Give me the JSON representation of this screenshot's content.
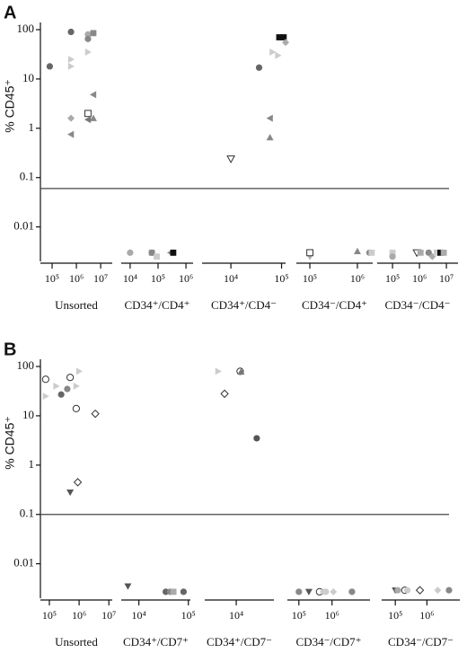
{
  "chart_data": [
    {
      "type": "scatter",
      "panel": "A",
      "y_label": "% CD45⁺",
      "yscale": "log",
      "ylim": [
        0.002,
        140
      ],
      "yticks": [
        100,
        10,
        1,
        0.1,
        0.01
      ],
      "threshold": 0.06,
      "groups": [
        {
          "name": "Unsorted",
          "xlim": [
            33000,
            30000000
          ],
          "xticks": [
            {
              "value": 100000,
              "label": "10⁵"
            },
            {
              "value": 1000000,
              "label": "10⁶"
            },
            {
              "value": 10000000,
              "label": "10⁷"
            }
          ],
          "x": [
            80000,
            600000,
            600000,
            600000,
            600000,
            600000,
            3000000,
            3000000,
            3000000,
            3000000,
            3000000,
            5000000,
            5000000,
            5000000
          ],
          "y": [
            18,
            90,
            25,
            18,
            1.6,
            0.75,
            80,
            65,
            35,
            2.0,
            1.5,
            85,
            4.8,
            1.6
          ],
          "marker": [
            "circle",
            "circle",
            "triangle-right",
            "triangle-right",
            "diamond",
            "triangle-left",
            "circle",
            "circle",
            "triangle-right",
            "square",
            "triangle-left",
            "square",
            "triangle-left",
            "triangle-up"
          ],
          "color": [
            "#666666",
            "#666666",
            "#cccccc",
            "#cccccc",
            "#aaaaaa",
            "#888888",
            "#aaaaaa",
            "#888888",
            "#cccccc",
            "#ffffff",
            "#777777",
            "#888888",
            "#888888",
            "#888888"
          ]
        },
        {
          "name": "CD34⁺/CD4⁺",
          "xlim": [
            4800,
            1800000
          ],
          "xticks": [
            {
              "value": 10000,
              "label": "10⁴"
            },
            {
              "value": 100000,
              "label": "10⁵"
            },
            {
              "value": 1000000,
              "label": "10⁶"
            }
          ],
          "x": [
            10000,
            60000,
            60000,
            90000,
            280000,
            350000
          ],
          "y": [
            0.003,
            0.003,
            0.003,
            0.0025,
            0.003,
            0.003
          ],
          "marker": [
            "circle",
            "square",
            "circle",
            "square",
            "triangle-left",
            "square"
          ],
          "color": [
            "#aaaaaa",
            "#aaaaaa",
            "#888888",
            "#cccccc",
            "#888888",
            "#111111"
          ]
        },
        {
          "name": "CD34⁺/CD4⁻",
          "xlim": [
            2700,
            120000
          ],
          "xticks": [
            {
              "value": 10000,
              "label": "10⁴"
            },
            {
              "value": 100000,
              "label": "10⁵"
            }
          ],
          "x": [
            10000,
            36000,
            59000,
            59000,
            66000,
            85000,
            90000,
            110000,
            120000
          ],
          "y": [
            0.24,
            17,
            1.6,
            0.65,
            35,
            30,
            70,
            70,
            55
          ],
          "marker": [
            "triangle-down",
            "circle",
            "triangle-left",
            "triangle-up",
            "triangle-right",
            "triangle-right",
            "square",
            "square",
            "diamond"
          ],
          "color": [
            "#ffffff",
            "#666666",
            "#888888",
            "#888888",
            "#cccccc",
            "#cccccc",
            "#111111",
            "#111111",
            "#aaaaaa"
          ]
        },
        {
          "name": "CD34⁻/CD4⁺",
          "xlim": [
            52000,
            2100000
          ],
          "xticks": [
            {
              "value": 100000,
              "label": "10⁵"
            },
            {
              "value": 1000000,
              "label": "10⁶"
            }
          ],
          "x": [
            100000,
            100000,
            1000000,
            1800000,
            2000000
          ],
          "y": [
            0.0025,
            0.003,
            0.0032,
            0.003,
            0.003
          ],
          "marker": [
            "triangle-down",
            "square",
            "triangle-up",
            "circle",
            "square"
          ],
          "color": [
            "#aaaaaa",
            "#ffffff",
            "#888888",
            "#888888",
            "#cccccc"
          ]
        },
        {
          "name": "CD34⁻/CD4⁻",
          "xlim": [
            27000,
            27000000
          ],
          "xticks": [
            {
              "value": 100000,
              "label": "10⁵"
            },
            {
              "value": 1000000,
              "label": "10⁶"
            },
            {
              "value": 10000000,
              "label": "10⁷"
            }
          ],
          "x": [
            100000,
            100000,
            800000,
            1100000,
            2200000,
            3000000,
            4400000,
            6000000,
            8000000
          ],
          "y": [
            0.003,
            0.0025,
            0.003,
            0.003,
            0.003,
            0.0025,
            0.003,
            0.003,
            0.003
          ],
          "marker": [
            "square",
            "circle",
            "triangle-down",
            "square",
            "circle",
            "diamond",
            "square",
            "square",
            "square"
          ],
          "color": [
            "#cccccc",
            "#aaaaaa",
            "#ffffff",
            "#aaaaaa",
            "#888888",
            "#aaaaaa",
            "#cccccc",
            "#111111",
            "#aaaaaa"
          ]
        }
      ]
    },
    {
      "type": "scatter",
      "panel": "B",
      "y_label": "% CD45⁺",
      "yscale": "log",
      "ylim": [
        0.002,
        140
      ],
      "yticks": [
        100,
        10,
        1,
        0.1,
        0.01
      ],
      "threshold": 0.1,
      "groups": [
        {
          "name": "Unsorted",
          "xlim": [
            50000,
            13000000
          ],
          "xticks": [
            {
              "value": 100000,
              "label": "10⁵"
            },
            {
              "value": 1000000,
              "label": "10⁶"
            },
            {
              "value": 10000000,
              "label": "10⁷"
            }
          ],
          "x": [
            75000,
            75000,
            170000,
            250000,
            400000,
            500000,
            800000,
            1000000,
            800000,
            500000,
            900000,
            3500000
          ],
          "y": [
            55,
            25,
            40,
            27,
            35,
            60,
            40,
            80,
            14,
            0.28,
            0.45,
            11
          ],
          "marker": [
            "circle",
            "triangle-right",
            "triangle-right",
            "circle",
            "circle",
            "circle",
            "triangle-right",
            "triangle-right",
            "circle",
            "triangle-down",
            "diamond",
            "diamond"
          ],
          "color": [
            "#ffffff",
            "#cccccc",
            "#cccccc",
            "#666666",
            "#888888",
            "#ffffff",
            "#cccccc",
            "#cccccc",
            "#ffffff",
            "#555555",
            "#ffffff",
            "#ffffff"
          ]
        },
        {
          "name": "CD34⁺/CD7⁺",
          "xlim": [
            4400,
            110000
          ],
          "xticks": [
            {
              "value": 10000,
              "label": "10⁴"
            },
            {
              "value": 100000,
              "label": "10⁵"
            }
          ],
          "x": [
            6000,
            35000,
            43000,
            50000,
            80000
          ],
          "y": [
            0.0035,
            0.0027,
            0.0027,
            0.0027,
            0.0027
          ],
          "marker": [
            "triangle-down",
            "circle",
            "circle",
            "square",
            "circle"
          ],
          "color": [
            "#555555",
            "#666666",
            "#888888",
            "#aaaaaa",
            "#666666"
          ]
        },
        {
          "name": "CD34⁺/CD7⁻",
          "xlim": [
            2300,
            58000
          ],
          "xticks": [
            {
              "value": 10000,
              "label": "10⁴"
            }
          ],
          "x": [
            4300,
            5800,
            12000,
            12500,
            26000
          ],
          "y": [
            80,
            28,
            80,
            78,
            3.5
          ],
          "marker": [
            "triangle-right",
            "diamond",
            "circle",
            "triangle-up",
            "circle"
          ],
          "color": [
            "#cccccc",
            "#ffffff",
            "#ffffff",
            "#777777",
            "#555555"
          ]
        },
        {
          "name": "CD34⁻/CD7⁺",
          "xlim": [
            45000,
            14000000
          ],
          "xticks": [
            {
              "value": 100000,
              "label": "10⁵"
            },
            {
              "value": 1000000,
              "label": "10⁶"
            }
          ],
          "x": [
            100000,
            200000,
            420000,
            540000,
            650000,
            1100000,
            4000000
          ],
          "y": [
            0.0027,
            0.0027,
            0.0027,
            0.0027,
            0.0027,
            0.0027,
            0.0027
          ],
          "marker": [
            "circle",
            "triangle-down",
            "circle",
            "diamond",
            "circle",
            "diamond",
            "circle"
          ],
          "color": [
            "#888888",
            "#555555",
            "#ffffff",
            "#cccccc",
            "#cccccc",
            "#cccccc",
            "#888888"
          ]
        },
        {
          "name": "CD34⁻/CD7⁻",
          "xlim": [
            37000,
            11000000
          ],
          "xticks": [
            {
              "value": 100000,
              "label": "10⁵"
            },
            {
              "value": 1000000,
              "label": "10⁶"
            }
          ],
          "x": [
            100000,
            120000,
            200000,
            240000,
            600000,
            2200000,
            5000000
          ],
          "y": [
            0.0029,
            0.0029,
            0.0029,
            0.0029,
            0.0029,
            0.0029,
            0.0029
          ],
          "marker": [
            "triangle-down",
            "circle",
            "circle",
            "circle",
            "diamond",
            "diamond",
            "circle"
          ],
          "color": [
            "#555555",
            "#aaaaaa",
            "#ffffff",
            "#cccccc",
            "#ffffff",
            "#cccccc",
            "#888888"
          ]
        }
      ]
    }
  ]
}
